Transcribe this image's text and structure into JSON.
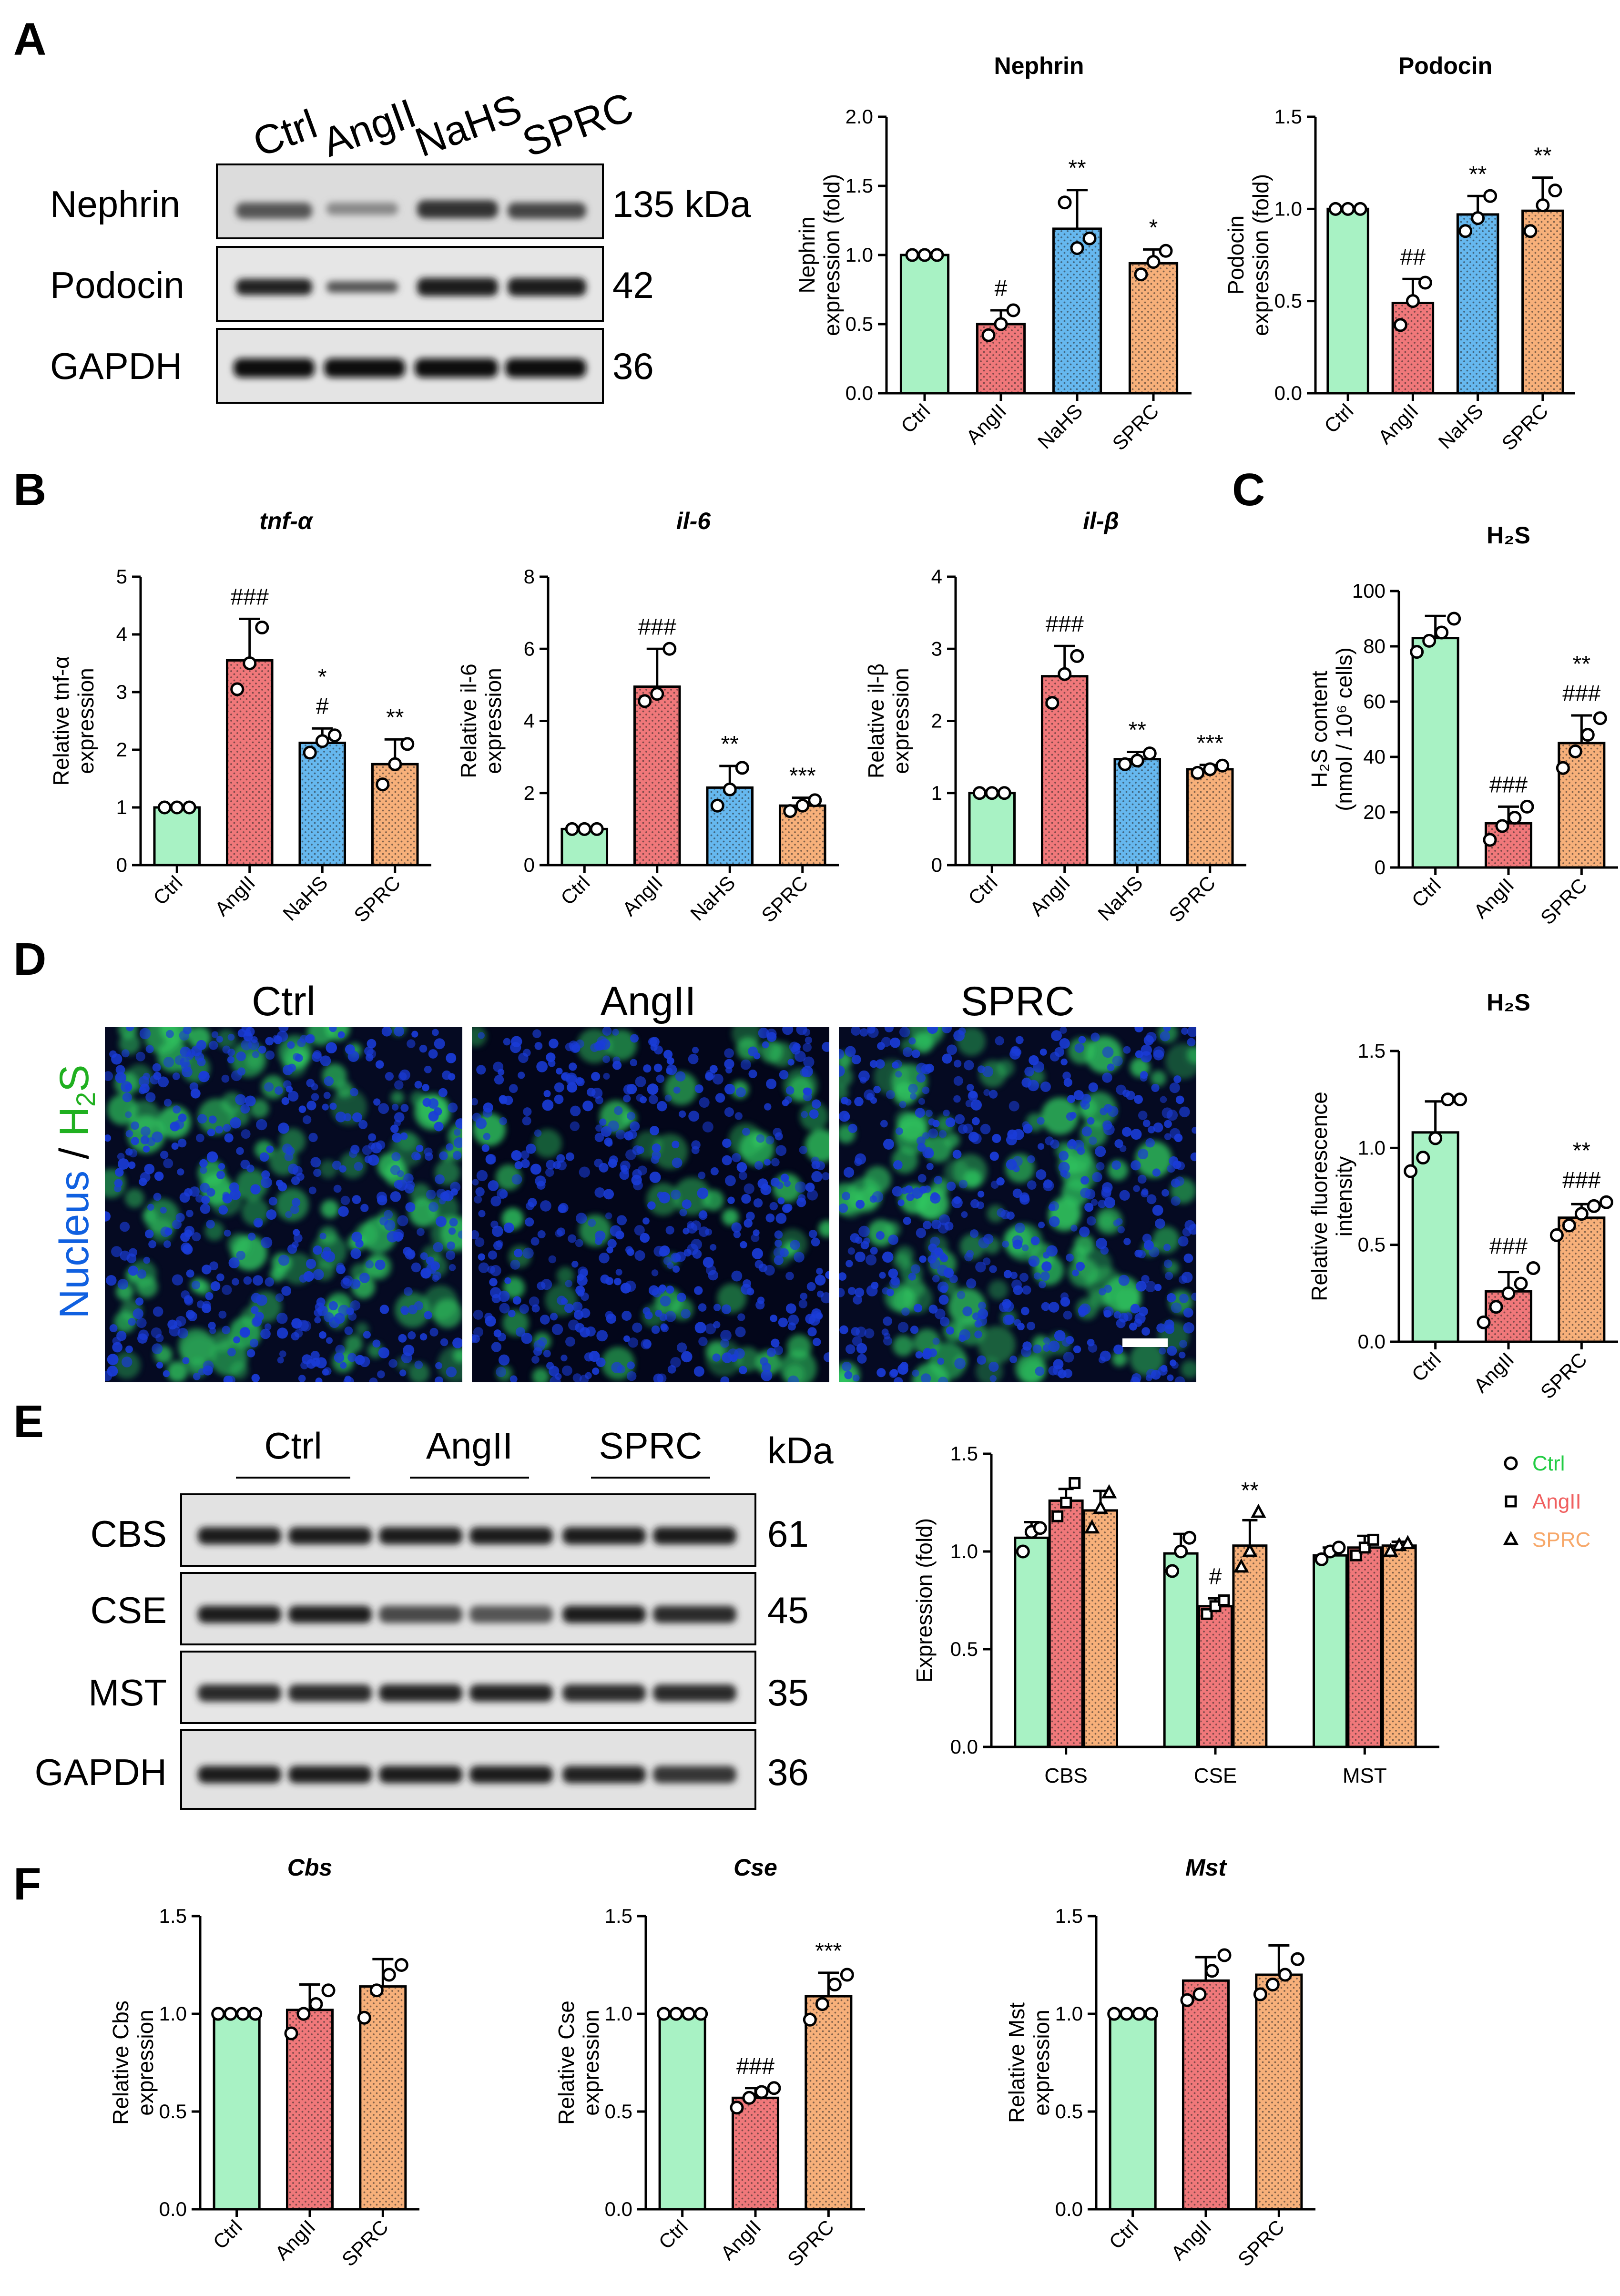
{
  "colors": {
    "ctrl": "#a8f2c4",
    "angii": "#f0787a",
    "nahs": "#66b8ef",
    "sprc": "#f7b07a",
    "legend_ctrl": "#22cc44",
    "legend_angii": "#f06060",
    "legend_sprc": "#f7a86a",
    "nucleus": "#1060e0",
    "h2s": "#20b020"
  },
  "panels": {
    "A": "A",
    "B": "B",
    "C": "C",
    "D": "D",
    "E": "E",
    "F": "F"
  },
  "blotA": {
    "lanes": [
      "Ctrl",
      "AngII",
      "NaHS",
      "SPRC"
    ],
    "rows": [
      {
        "name": "Nephrin",
        "size": "135 kDa"
      },
      {
        "name": "Podocin",
        "size": "42"
      },
      {
        "name": "GAPDH",
        "size": "36"
      }
    ]
  },
  "blotE": {
    "groups": [
      "Ctrl",
      "AngII",
      "SPRC"
    ],
    "unit": "kDa",
    "rows": [
      {
        "name": "CBS",
        "size": "61"
      },
      {
        "name": "CSE",
        "size": "45"
      },
      {
        "name": "MST",
        "size": "35"
      },
      {
        "name": "GAPDH",
        "size": "36"
      }
    ]
  },
  "micro": {
    "labels": [
      "Ctrl",
      "AngII",
      "SPRC"
    ],
    "ylabel_nucleus": "Nucleus",
    "ylabel_sep": " / ",
    "ylabel_h2s": "H",
    "ylabel_sub": "2",
    "ylabel_s": "S"
  },
  "chart_data": [
    {
      "id": "nephrin",
      "type": "bar",
      "title": "Nephrin",
      "ylabel": [
        "Nephrin",
        "expression (fold)"
      ],
      "categories": [
        "Ctrl",
        "AngII",
        "NaHS",
        "SPRC"
      ],
      "values": [
        1.0,
        0.5,
        1.19,
        0.94
      ],
      "errors": [
        0.0,
        0.1,
        0.28,
        0.1
      ],
      "points": [
        [
          1.0,
          1.0,
          1.0
        ],
        [
          0.42,
          0.5,
          0.6
        ],
        [
          1.38,
          1.05,
          1.12
        ],
        [
          0.86,
          0.95,
          1.03
        ]
      ],
      "annotations": [
        [],
        [
          "#"
        ],
        [
          "**"
        ],
        [
          "*"
        ]
      ],
      "ylim": [
        0,
        2.0
      ],
      "yticks": [
        "0.0",
        "0.5",
        "1.0",
        "1.5",
        "2.0"
      ]
    },
    {
      "id": "podocin",
      "type": "bar",
      "title": "Podocin",
      "ylabel": [
        "Podocin",
        "expression (fold)"
      ],
      "categories": [
        "Ctrl",
        "AngII",
        "NaHS",
        "SPRC"
      ],
      "values": [
        1.0,
        0.49,
        0.97,
        0.99
      ],
      "errors": [
        0.0,
        0.13,
        0.1,
        0.18
      ],
      "points": [
        [
          1.0,
          1.0,
          1.0
        ],
        [
          0.37,
          0.5,
          0.6
        ],
        [
          0.88,
          0.95,
          1.07
        ],
        [
          0.88,
          1.02,
          1.1
        ]
      ],
      "annotations": [
        [],
        [
          "##"
        ],
        [
          "**"
        ],
        [
          "**"
        ]
      ],
      "ylim": [
        0,
        1.5
      ],
      "yticks": [
        "0.0",
        "0.5",
        "1.0",
        "1.5"
      ]
    },
    {
      "id": "tnf",
      "type": "bar",
      "title": "tnf-α",
      "ylabel": [
        "Relative tnf-α",
        "expression"
      ],
      "categories": [
        "Ctrl",
        "AngII",
        "NaHS",
        "SPRC"
      ],
      "values": [
        1.0,
        3.55,
        2.12,
        1.75
      ],
      "errors": [
        0.0,
        0.72,
        0.25,
        0.43
      ],
      "points": [
        [
          1.0,
          1.0,
          1.0
        ],
        [
          3.05,
          3.5,
          4.12
        ],
        [
          1.95,
          2.15,
          2.25
        ],
        [
          1.4,
          1.75,
          2.1
        ]
      ],
      "annotations": [
        [],
        [
          "###"
        ],
        [
          "*",
          "#"
        ],
        [
          "**"
        ]
      ],
      "ylim": [
        0,
        5
      ],
      "yticks": [
        "0",
        "1",
        "2",
        "3",
        "4",
        "5"
      ]
    },
    {
      "id": "il6",
      "type": "bar",
      "title": "il-6",
      "ylabel": [
        "Relative il-6",
        "expression"
      ],
      "categories": [
        "Ctrl",
        "AngII",
        "NaHS",
        "SPRC"
      ],
      "values": [
        1.0,
        4.95,
        2.15,
        1.65
      ],
      "errors": [
        0.0,
        1.05,
        0.6,
        0.22
      ],
      "points": [
        [
          1.0,
          1.0,
          1.0
        ],
        [
          4.55,
          4.75,
          6.0
        ],
        [
          1.65,
          2.1,
          2.7
        ],
        [
          1.5,
          1.65,
          1.8
        ]
      ],
      "annotations": [
        [],
        [
          "###"
        ],
        [
          "**"
        ],
        [
          "***"
        ]
      ],
      "ylim": [
        0,
        8
      ],
      "yticks": [
        "0",
        "2",
        "4",
        "6",
        "8"
      ]
    },
    {
      "id": "ilb",
      "type": "bar",
      "title": "il-β",
      "ylabel": [
        "Relative il-β",
        "expression"
      ],
      "categories": [
        "Ctrl",
        "AngII",
        "NaHS",
        "SPRC"
      ],
      "values": [
        1.0,
        2.62,
        1.47,
        1.33
      ],
      "errors": [
        0.0,
        0.42,
        0.1,
        0.06
      ],
      "points": [
        [
          1.0,
          1.0,
          1.0
        ],
        [
          2.25,
          2.65,
          2.9
        ],
        [
          1.4,
          1.45,
          1.55
        ],
        [
          1.28,
          1.33,
          1.38
        ]
      ],
      "annotations": [
        [],
        [
          "###"
        ],
        [
          "**"
        ],
        [
          "***"
        ]
      ],
      "ylim": [
        0,
        4
      ],
      "yticks": [
        "0",
        "1",
        "2",
        "3",
        "4"
      ]
    },
    {
      "id": "h2s_content",
      "type": "bar",
      "title": "H₂S",
      "ylabel": [
        "H₂S content",
        "(nmol / 10⁶ cells)"
      ],
      "categories": [
        "Ctrl",
        "AngII",
        "SPRC"
      ],
      "values": [
        83,
        16,
        45
      ],
      "errors": [
        8,
        6,
        10
      ],
      "points": [
        [
          78,
          82,
          85,
          90
        ],
        [
          10,
          15,
          18,
          22
        ],
        [
          36,
          42,
          48,
          54
        ]
      ],
      "annotations": [
        [],
        [
          "###"
        ],
        [
          "**",
          "###"
        ]
      ],
      "ylim": [
        0,
        100
      ],
      "yticks": [
        "0",
        "20",
        "40",
        "60",
        "80",
        "100"
      ]
    },
    {
      "id": "h2s_fluor",
      "type": "bar",
      "title": "H₂S",
      "ylabel": [
        "Relative fluorescence",
        "intensity"
      ],
      "categories": [
        "Ctrl",
        "AngII",
        "SPRC"
      ],
      "values": [
        1.08,
        0.26,
        0.64
      ],
      "errors": [
        0.16,
        0.1,
        0.07
      ],
      "points": [
        [
          0.88,
          0.95,
          1.05,
          1.25,
          1.25
        ],
        [
          0.1,
          0.18,
          0.25,
          0.3,
          0.38
        ],
        [
          0.55,
          0.6,
          0.66,
          0.7,
          0.72
        ]
      ],
      "annotations": [
        [],
        [
          "###"
        ],
        [
          "**",
          "###"
        ]
      ],
      "ylim": [
        0,
        1.5
      ],
      "yticks": [
        "0.0",
        "0.5",
        "1.0",
        "1.5"
      ]
    },
    {
      "id": "enzymes",
      "type": "grouped-bar",
      "title": "",
      "ylabel": [
        "Expression (fold)"
      ],
      "categories": [
        "CBS",
        "CSE",
        "MST"
      ],
      "series": [
        {
          "name": "Ctrl",
          "values": [
            1.07,
            0.99,
            0.98
          ],
          "errors": [
            0.08,
            0.1,
            0.04
          ]
        },
        {
          "name": "AngII",
          "values": [
            1.26,
            0.72,
            1.02
          ],
          "errors": [
            0.06,
            0.04,
            0.06
          ]
        },
        {
          "name": "SPRC",
          "values": [
            1.21,
            1.03,
            1.03
          ],
          "errors": [
            0.1,
            0.13,
            0.02
          ]
        }
      ],
      "points": [
        [
          [
            1.0,
            1.1,
            1.12
          ],
          [
            1.18,
            1.25,
            1.35
          ],
          [
            1.12,
            1.22,
            1.3
          ]
        ],
        [
          [
            0.9,
            1.0,
            1.07
          ],
          [
            0.68,
            0.72,
            0.75
          ],
          [
            0.92,
            1.0,
            1.2
          ]
        ],
        [
          [
            0.96,
            1.0,
            1.02
          ],
          [
            0.98,
            1.02,
            1.06
          ],
          [
            1.0,
            1.03,
            1.04
          ]
        ]
      ],
      "annotations": [
        [],
        [
          "",
          "#",
          "**"
        ],
        []
      ],
      "legend": [
        "Ctrl",
        "AngII",
        "SPRC"
      ],
      "ylim": [
        0,
        1.5
      ],
      "yticks": [
        "0.0",
        "0.5",
        "1.0",
        "1.5"
      ]
    },
    {
      "id": "cbs",
      "type": "bar",
      "title": "Cbs",
      "ylabel": [
        "Relative Cbs",
        "expression"
      ],
      "categories": [
        "Ctrl",
        "AngII",
        "SPRC"
      ],
      "values": [
        1.0,
        1.02,
        1.14
      ],
      "errors": [
        0.0,
        0.13,
        0.14
      ],
      "points": [
        [
          1.0,
          1.0,
          1.0,
          1.0
        ],
        [
          0.9,
          1.0,
          1.05,
          1.12
        ],
        [
          0.98,
          1.12,
          1.2,
          1.25
        ]
      ],
      "annotations": [
        [],
        [],
        []
      ],
      "ylim": [
        0,
        1.5
      ],
      "yticks": [
        "0.0",
        "0.5",
        "1.0",
        "1.5"
      ]
    },
    {
      "id": "cse",
      "type": "bar",
      "title": "Cse",
      "ylabel": [
        "Relative Cse",
        "expression"
      ],
      "categories": [
        "Ctrl",
        "AngII",
        "SPRC"
      ],
      "values": [
        1.0,
        0.57,
        1.09
      ],
      "errors": [
        0.0,
        0.05,
        0.12
      ],
      "points": [
        [
          1.0,
          1.0,
          1.0,
          1.0
        ],
        [
          0.52,
          0.57,
          0.6,
          0.62
        ],
        [
          0.97,
          1.05,
          1.15,
          1.2
        ]
      ],
      "annotations": [
        [],
        [
          "###"
        ],
        [
          "***"
        ]
      ],
      "ylim": [
        0,
        1.5
      ],
      "yticks": [
        "0.0",
        "0.5",
        "1.0",
        "1.5"
      ]
    },
    {
      "id": "mst",
      "type": "bar",
      "title": "Mst",
      "ylabel": [
        "Relative Mst",
        "expression"
      ],
      "categories": [
        "Ctrl",
        "AngII",
        "SPRC"
      ],
      "values": [
        1.0,
        1.17,
        1.2
      ],
      "errors": [
        0.0,
        0.12,
        0.15
      ],
      "points": [
        [
          1.0,
          1.0,
          1.0,
          1.0
        ],
        [
          1.07,
          1.1,
          1.22,
          1.3
        ],
        [
          1.1,
          1.15,
          1.2,
          1.28
        ]
      ],
      "annotations": [
        [],
        [],
        []
      ],
      "ylim": [
        0,
        1.5
      ],
      "yticks": [
        "0.0",
        "0.5",
        "1.0",
        "1.5"
      ]
    }
  ]
}
